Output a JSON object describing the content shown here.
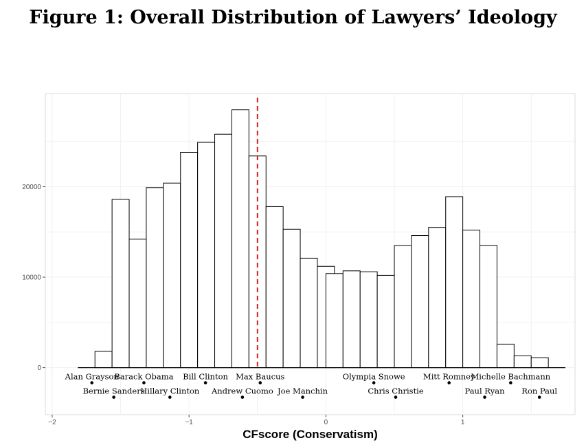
{
  "chart_data": {
    "type": "bar",
    "title": "Figure 1: Overall Distribution of Lawyers’ Ideology",
    "xlabel": "CFscore (Conservatism)",
    "ylabel": "",
    "xlim": [
      -2.05,
      1.82
    ],
    "ylim": [
      -5200,
      30300
    ],
    "x_ticks": [
      {
        "value": -2,
        "label": "−2"
      },
      {
        "value": -1,
        "label": "−1"
      },
      {
        "value": 0,
        "label": "0"
      },
      {
        "value": 1,
        "label": "1"
      }
    ],
    "y_ticks": [
      {
        "value": 0,
        "label": "0"
      },
      {
        "value": 10000,
        "label": "10000"
      },
      {
        "value": 20000,
        "label": "20000"
      }
    ],
    "grid": true,
    "bin_width": 0.125,
    "bins": [
      {
        "x0": -1.8125,
        "value": 0
      },
      {
        "x0": -1.6875,
        "value": 1800
      },
      {
        "x0": -1.5625,
        "value": 18600
      },
      {
        "x0": -1.4375,
        "value": 14200
      },
      {
        "x0": -1.3125,
        "value": 19900
      },
      {
        "x0": -1.1875,
        "value": 20400
      },
      {
        "x0": -1.0625,
        "value": 23800
      },
      {
        "x0": -0.9375,
        "value": 24900
      },
      {
        "x0": -0.8125,
        "value": 25800
      },
      {
        "x0": -0.6875,
        "value": 28500
      },
      {
        "x0": -0.5625,
        "value": 23400
      },
      {
        "x0": -0.4375,
        "value": 17800
      },
      {
        "x0": -0.3125,
        "value": 15300
      },
      {
        "x0": -0.1875,
        "value": 12100
      },
      {
        "x0": -0.0625,
        "value": 11200
      },
      {
        "x0": 0.0,
        "value": 10400
      },
      {
        "x0": 0.125,
        "value": 10700
      },
      {
        "x0": 0.25,
        "value": 10600
      },
      {
        "x0": 0.375,
        "value": 10200
      },
      {
        "x0": 0.5,
        "value": 13500
      },
      {
        "x0": 0.625,
        "value": 14600
      },
      {
        "x0": 0.75,
        "value": 15500
      },
      {
        "x0": 0.875,
        "value": 18900
      },
      {
        "x0": 1.0,
        "value": 15200
      },
      {
        "x0": 1.125,
        "value": 13500
      },
      {
        "x0": 1.25,
        "value": 2600
      },
      {
        "x0": 1.375,
        "value": 1300
      },
      {
        "x0": 1.5,
        "value": 1100
      },
      {
        "x0": 1.625,
        "value": 0
      }
    ],
    "reference_line": {
      "x": -0.5,
      "color": "#cc2222",
      "style": "dashed"
    },
    "politicians": [
      {
        "name": "Alan Grayson",
        "x": -1.71,
        "row": 1
      },
      {
        "name": "Bernie Sanders",
        "x": -1.55,
        "row": 2
      },
      {
        "name": "Barack Obama",
        "x": -1.33,
        "row": 1
      },
      {
        "name": "Hillary Clinton",
        "x": -1.14,
        "row": 2
      },
      {
        "name": "Bill Clinton",
        "x": -0.88,
        "row": 1
      },
      {
        "name": "Andrew Cuomo",
        "x": -0.61,
        "row": 2
      },
      {
        "name": "Max Baucus",
        "x": -0.48,
        "row": 1
      },
      {
        "name": "Joe Manchin",
        "x": -0.17,
        "row": 2
      },
      {
        "name": "Olympia Snowe",
        "x": 0.35,
        "row": 1
      },
      {
        "name": "Chris Christie",
        "x": 0.51,
        "row": 2
      },
      {
        "name": "Mitt Romney",
        "x": 0.9,
        "row": 1
      },
      {
        "name": "Paul Ryan",
        "x": 1.16,
        "row": 2
      },
      {
        "name": "Michelle Bachmann",
        "x": 1.35,
        "row": 1
      },
      {
        "name": "Ron Paul",
        "x": 1.56,
        "row": 2
      }
    ],
    "colors": {
      "panel_background": "#ffffff",
      "panel_border": "#d9d9d9",
      "grid": "#f0f0f0",
      "bar_fill": "#ffffff",
      "bar_stroke": "#000000",
      "baseline": "#000000"
    }
  }
}
